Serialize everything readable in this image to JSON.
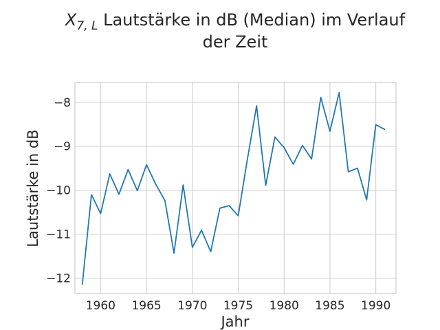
{
  "chart_data": {
    "type": "line",
    "title": {
      "var_main": "X",
      "var_sub": "7, L",
      "line1": " Lautstärke in dB (Median) im Verlauf",
      "line2": "der Zeit"
    },
    "xlabel": "Jahr",
    "ylabel": "Lautstärke in dB",
    "xlim": [
      1957.2,
      1992.2
    ],
    "ylim": [
      -12.35,
      -7.55
    ],
    "xticks": [
      1960,
      1965,
      1970,
      1975,
      1980,
      1985,
      1990
    ],
    "xtick_labels": [
      "1960",
      "1965",
      "1970",
      "1975",
      "1980",
      "1985",
      "1990"
    ],
    "yticks": [
      -12,
      -11,
      -10,
      -9,
      -8
    ],
    "ytick_labels": [
      "−12",
      "−11",
      "−10",
      "−9",
      "−8"
    ],
    "grid": true,
    "series": [
      {
        "color": "#1f77b4",
        "x": [
          1958,
          1959,
          1960,
          1961,
          1962,
          1963,
          1964,
          1965,
          1966,
          1967,
          1968,
          1969,
          1970,
          1971,
          1972,
          1973,
          1974,
          1975,
          1976,
          1977,
          1978,
          1979,
          1980,
          1981,
          1982,
          1983,
          1984,
          1985,
          1986,
          1987,
          1988,
          1989,
          1990,
          1991
        ],
        "y": [
          -12.15,
          -10.1,
          -10.53,
          -9.63,
          -10.09,
          -9.53,
          -10.01,
          -9.42,
          -9.86,
          -10.23,
          -11.43,
          -9.88,
          -11.3,
          -10.91,
          -11.4,
          -10.41,
          -10.35,
          -10.58,
          -9.3,
          -8.08,
          -9.89,
          -8.79,
          -9.03,
          -9.41,
          -8.98,
          -9.29,
          -7.89,
          -8.66,
          -7.78,
          -9.58,
          -9.5,
          -10.22,
          -8.51,
          -8.62
        ]
      }
    ]
  }
}
